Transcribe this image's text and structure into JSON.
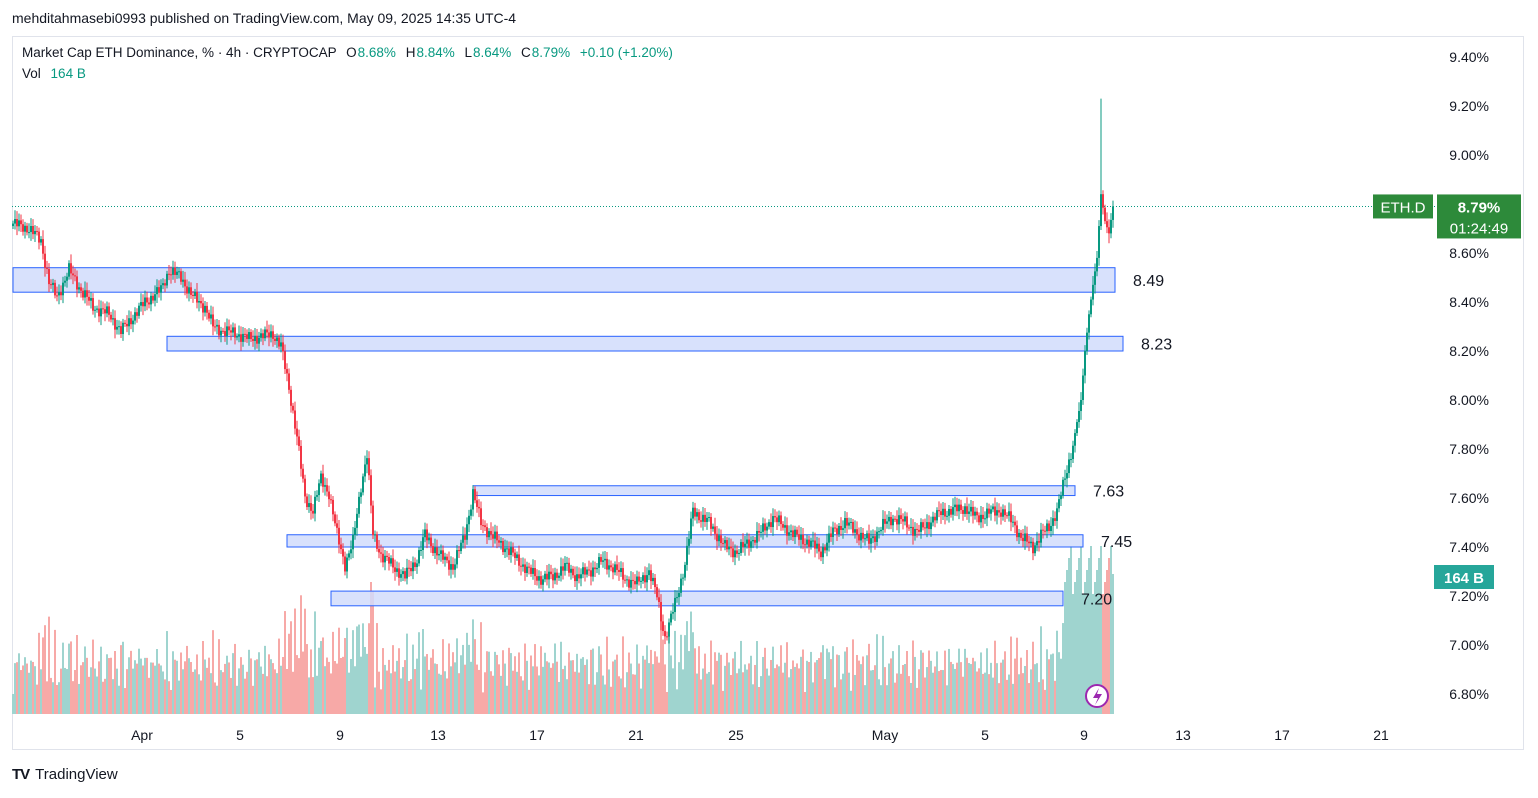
{
  "published_by": "mehditahmasebi0993 published on TradingView.com, May 09, 2025 14:35 UTC-4",
  "footer_brand": "TradingView",
  "footer_logo_text": "TV",
  "legend": {
    "symbol_line": "Market Cap ETH Dominance, % · 4h · CRYPTOCAP",
    "o_label": "O",
    "o_value": "8.68%",
    "h_label": "H",
    "h_value": "8.84%",
    "l_label": "L",
    "l_value": "8.64%",
    "c_label": "C",
    "c_value": "8.79%",
    "change": "+0.10 (+1.20%)",
    "vol_label": "Vol",
    "vol_value": "164 B"
  },
  "price_badge": {
    "ticker": "ETH.D",
    "price": "8.79%",
    "countdown": "01:24:49"
  },
  "volume_badge": "164 B",
  "colors": {
    "up": "#089981",
    "down": "#f23645",
    "up_volume": "#9fd4cf",
    "down_volume": "#f7a9a7",
    "zone_fill": "#d1dcfc",
    "zone_border": "#2962ff",
    "badge_bg": "#2d8a3a",
    "vol_badge_bg": "#26a69a"
  },
  "chart_data": {
    "type": "candlestick",
    "title": "Market Cap ETH Dominance, % · 4h · CRYPTOCAP",
    "ylabel": "%",
    "ylim": [
      6.72,
      9.52
    ],
    "y_ticks": [
      "9.40%",
      "9.20%",
      "9.00%",
      "8.80%",
      "8.60%",
      "8.40%",
      "8.20%",
      "8.00%",
      "7.80%",
      "7.60%",
      "7.40%",
      "7.20%",
      "7.00%",
      "6.80%"
    ],
    "x_ticks": [
      "Apr",
      "5",
      "9",
      "13",
      "17",
      "21",
      "25",
      "May",
      "5",
      "9",
      "13",
      "17",
      "21"
    ],
    "current_price": 8.79,
    "path_points": [
      [
        0,
        8.72
      ],
      [
        8,
        8.7
      ],
      [
        14,
        8.65
      ],
      [
        18,
        8.48
      ],
      [
        22,
        8.42
      ],
      [
        28,
        8.53
      ],
      [
        34,
        8.45
      ],
      [
        40,
        8.38
      ],
      [
        48,
        8.35
      ],
      [
        54,
        8.28
      ],
      [
        62,
        8.36
      ],
      [
        66,
        8.4
      ],
      [
        74,
        8.45
      ],
      [
        78,
        8.53
      ],
      [
        84,
        8.5
      ],
      [
        90,
        8.42
      ],
      [
        96,
        8.38
      ],
      [
        100,
        8.3
      ],
      [
        106,
        8.28
      ],
      [
        112,
        8.27
      ],
      [
        118,
        8.25
      ],
      [
        124,
        8.26
      ],
      [
        130,
        8.27
      ],
      [
        134,
        8.22
      ],
      [
        138,
        8.05
      ],
      [
        142,
        7.85
      ],
      [
        146,
        7.6
      ],
      [
        150,
        7.55
      ],
      [
        154,
        7.68
      ],
      [
        158,
        7.62
      ],
      [
        162,
        7.45
      ],
      [
        166,
        7.33
      ],
      [
        170,
        7.42
      ],
      [
        174,
        7.65
      ],
      [
        177,
        7.78
      ],
      [
        180,
        7.45
      ],
      [
        184,
        7.37
      ],
      [
        190,
        7.32
      ],
      [
        196,
        7.28
      ],
      [
        202,
        7.35
      ],
      [
        206,
        7.45
      ],
      [
        210,
        7.4
      ],
      [
        214,
        7.36
      ],
      [
        220,
        7.32
      ],
      [
        226,
        7.45
      ],
      [
        230,
        7.62
      ],
      [
        234,
        7.5
      ],
      [
        240,
        7.44
      ],
      [
        246,
        7.4
      ],
      [
        252,
        7.35
      ],
      [
        258,
        7.3
      ],
      [
        264,
        7.27
      ],
      [
        270,
        7.28
      ],
      [
        276,
        7.32
      ],
      [
        282,
        7.28
      ],
      [
        288,
        7.3
      ],
      [
        294,
        7.34
      ],
      [
        300,
        7.32
      ],
      [
        306,
        7.27
      ],
      [
        312,
        7.25
      ],
      [
        318,
        7.3
      ],
      [
        322,
        7.2
      ],
      [
        326,
        7.03
      ],
      [
        328,
        7.08
      ],
      [
        332,
        7.2
      ],
      [
        336,
        7.33
      ],
      [
        340,
        7.55
      ],
      [
        344,
        7.52
      ],
      [
        348,
        7.5
      ],
      [
        352,
        7.45
      ],
      [
        356,
        7.4
      ],
      [
        362,
        7.38
      ],
      [
        368,
        7.42
      ],
      [
        374,
        7.46
      ],
      [
        380,
        7.52
      ],
      [
        386,
        7.48
      ],
      [
        392,
        7.44
      ],
      [
        398,
        7.42
      ],
      [
        404,
        7.38
      ],
      [
        410,
        7.46
      ],
      [
        416,
        7.5
      ],
      [
        422,
        7.46
      ],
      [
        428,
        7.42
      ],
      [
        434,
        7.48
      ],
      [
        440,
        7.52
      ],
      [
        446,
        7.5
      ],
      [
        452,
        7.46
      ],
      [
        458,
        7.5
      ],
      [
        464,
        7.54
      ],
      [
        470,
        7.55
      ],
      [
        476,
        7.56
      ],
      [
        482,
        7.52
      ],
      [
        488,
        7.54
      ],
      [
        494,
        7.55
      ],
      [
        500,
        7.5
      ],
      [
        504,
        7.44
      ],
      [
        510,
        7.4
      ],
      [
        514,
        7.45
      ],
      [
        518,
        7.48
      ],
      [
        522,
        7.55
      ],
      [
        526,
        7.68
      ],
      [
        530,
        7.82
      ],
      [
        534,
        8.0
      ],
      [
        536,
        8.2
      ],
      [
        538,
        8.35
      ],
      [
        540,
        8.47
      ],
      [
        542,
        8.58
      ],
      [
        544,
        8.84
      ],
      [
        546,
        8.73
      ],
      [
        548,
        8.68
      ],
      [
        550,
        8.79
      ]
    ],
    "wick_extensions": [
      [
        544,
        9.23
      ],
      [
        548,
        8.64
      ]
    ],
    "volume_unit": "B",
    "volume_current": 164,
    "annotations": [
      {
        "type": "zone",
        "label": "8.49",
        "low": 8.44,
        "high": 8.54,
        "start_bar": 0,
        "end_bar": 551
      },
      {
        "type": "zone",
        "label": "8.23",
        "low": 8.2,
        "high": 8.26,
        "start_bar": 77,
        "end_bar": 555
      },
      {
        "type": "zone",
        "label": "7.63",
        "low": 7.61,
        "high": 7.65,
        "start_bar": 230,
        "end_bar": 531
      },
      {
        "type": "zone",
        "label": "7.45",
        "low": 7.4,
        "high": 7.45,
        "start_bar": 137,
        "end_bar": 535
      },
      {
        "type": "zone",
        "label": "7.20",
        "low": 7.16,
        "high": 7.22,
        "start_bar": 159,
        "end_bar": 525
      }
    ]
  }
}
